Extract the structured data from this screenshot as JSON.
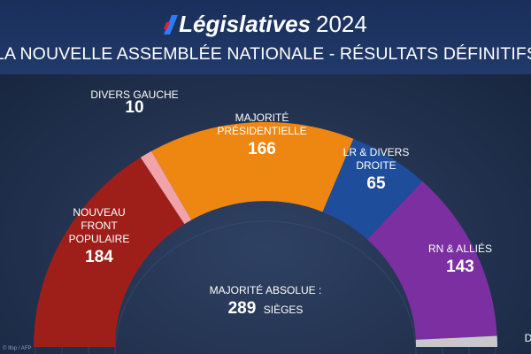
{
  "header": {
    "brand_first_letter": "L",
    "brand_word": "égislatives",
    "year": "2024",
    "subtitle": "LA NOUVELLE ASSEMBLÉE NATIONALE - RÉSULTATS DÉFINITIFS"
  },
  "majority": {
    "label": "MAJORITÉ ABSOLUE :",
    "value": "289",
    "unit": "SIÈGES"
  },
  "credit": "© Ifop / AFP",
  "colors": {
    "background": "#1d2c49",
    "nfp": "#9e1f1a",
    "dvg": "#f0a3a8",
    "ens": "#ee8612",
    "lr": "#1e4d9b",
    "rn": "#7c2fa0",
    "others": "#c8c8cc"
  },
  "chart_data": {
    "type": "parliament-hemicycle",
    "total_seats": 577,
    "series": [
      {
        "key": "nfp",
        "name_lines": [
          "NOUVEAU",
          "FRONT",
          "POPULAIRE"
        ],
        "seats": 184,
        "display": "184"
      },
      {
        "key": "dvg",
        "name_lines": [
          "DIVERS GAUCHE"
        ],
        "seats": 10,
        "display": "10"
      },
      {
        "key": "ens",
        "name_lines": [
          "MAJORITÉ",
          "PRÉSIDENTIELLE"
        ],
        "seats": 166,
        "display": "166"
      },
      {
        "key": "lr",
        "name_lines": [
          "LR & DIVERS",
          "DROITE"
        ],
        "seats": 65,
        "display": "65"
      },
      {
        "key": "rn",
        "name_lines": [
          "RN & ALLIÉS"
        ],
        "seats": 143,
        "display": "143"
      },
      {
        "key": "others",
        "name_lines": [
          "D"
        ],
        "seats": 9,
        "display": ""
      }
    ]
  }
}
